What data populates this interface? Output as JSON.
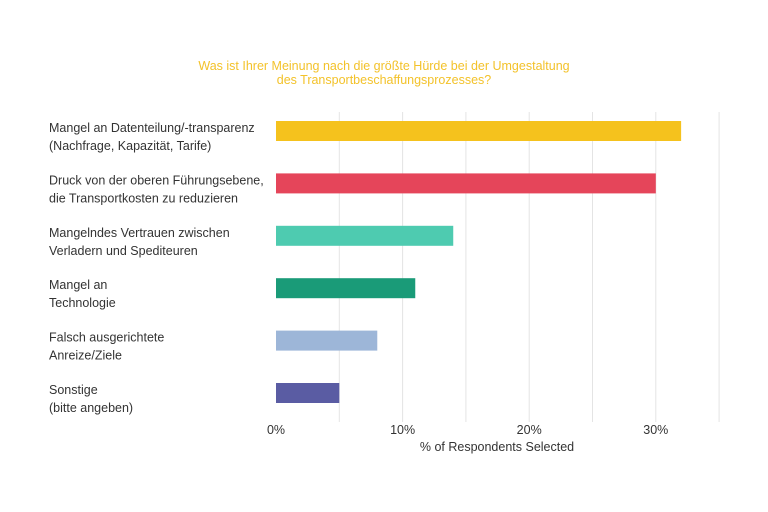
{
  "chart_data": {
    "type": "bar",
    "orientation": "horizontal",
    "title": [
      "Was ist Ihrer Meinung nach die größte Hürde bei der Umgestaltung",
      "des Transportbeschaffungsprozesses?"
    ],
    "xlabel": "% of Respondents Selected",
    "xlim": [
      0,
      35
    ],
    "xticks": [
      0,
      10,
      20,
      30
    ],
    "xtick_labels": [
      "0%",
      "10%",
      "20%",
      "30%"
    ],
    "grid": true,
    "categories": [
      [
        "Mangel an Datenteilung/-transparenz",
        "(Nachfrage, Kapazität, Tarife)"
      ],
      [
        "Druck von der oberen Führungsebene,",
        "die Transportkosten zu reduzieren"
      ],
      [
        "Mangelndes Vertrauen zwischen",
        "Verladern und Spediteuren"
      ],
      [
        "Mangel an",
        "Technologie"
      ],
      [
        "Falsch ausgerichtete",
        "Anreize/Ziele"
      ],
      [
        "Sonstige",
        "(bitte angeben)"
      ]
    ],
    "values": [
      32,
      30,
      14,
      11,
      8,
      5
    ],
    "colors": [
      "#f5c21d",
      "#e5455a",
      "#4ecbb0",
      "#1a9b78",
      "#9db6d8",
      "#5a5ca3"
    ]
  }
}
